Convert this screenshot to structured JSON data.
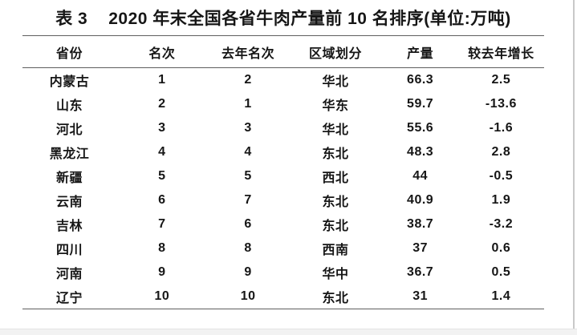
{
  "title": {
    "prefix": "表 3",
    "main": "2020 年末全国各省牛肉产量前 10 名排序(单位:万吨)"
  },
  "table": {
    "columns": [
      "省份",
      "名次",
      "去年名次",
      "区域划分",
      "产量",
      "较去年增长"
    ],
    "rows": [
      [
        "内蒙古",
        "1",
        "2",
        "华北",
        "66.3",
        "2.5"
      ],
      [
        "山东",
        "2",
        "1",
        "华东",
        "59.7",
        "-13.6"
      ],
      [
        "河北",
        "3",
        "3",
        "华北",
        "55.6",
        "-1.6"
      ],
      [
        "黑龙江",
        "4",
        "4",
        "东北",
        "48.3",
        "2.8"
      ],
      [
        "新疆",
        "5",
        "5",
        "西北",
        "44",
        "-0.5"
      ],
      [
        "云南",
        "6",
        "7",
        "东北",
        "40.9",
        "1.9"
      ],
      [
        "吉林",
        "7",
        "6",
        "东北",
        "38.7",
        "-3.2"
      ],
      [
        "四川",
        "8",
        "8",
        "西南",
        "37",
        "0.6"
      ],
      [
        "河南",
        "9",
        "9",
        "华中",
        "36.7",
        "0.5"
      ],
      [
        "辽宁",
        "10",
        "10",
        "东北",
        "31",
        "1.4"
      ]
    ]
  },
  "colors": {
    "rule": "#5f5f5f",
    "text": "#161616",
    "window_border": "#c9c9c9",
    "bottom_band": "#f2f2f2",
    "background": "#ffffff"
  }
}
